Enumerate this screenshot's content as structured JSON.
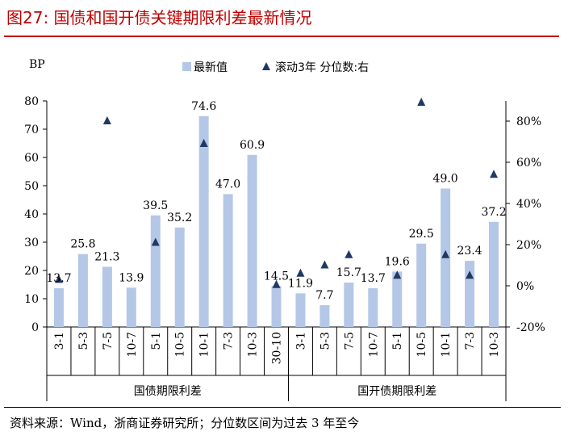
{
  "title": "图27:   国债和国开债关键期限利差最新情况",
  "source": "资料来源：Wind，浙商证券研究所；分位数区间为过去 3 年至今",
  "chart_data": {
    "type": "bar",
    "ylabel": "BP",
    "ylim": [
      0,
      80
    ],
    "yticks": [
      0,
      10,
      20,
      30,
      40,
      50,
      60,
      70,
      80
    ],
    "y2lim": [
      -20,
      90
    ],
    "y2ticks": [
      "-20%",
      "0%",
      "20%",
      "40%",
      "60%",
      "80%"
    ],
    "y2tick_values": [
      -20,
      0,
      20,
      40,
      60,
      80
    ],
    "legend_position": "top",
    "groups": [
      {
        "label": "国债期限利差",
        "categories": [
          "3-1",
          "5-3",
          "7-5",
          "10-7",
          "5-1",
          "10-5",
          "10-1",
          "7-3",
          "10-3",
          "30-10"
        ]
      },
      {
        "label": "国开债期限利差",
        "categories": [
          "3-1",
          "5-3",
          "7-5",
          "10-7",
          "5-1",
          "10-5",
          "10-1",
          "7-3",
          "10-3"
        ]
      }
    ],
    "series": [
      {
        "name": "最新值",
        "type": "bar",
        "axis": "left",
        "color": "#b4c7e7",
        "values": [
          13.7,
          25.8,
          21.3,
          13.9,
          39.5,
          35.2,
          74.6,
          47.0,
          60.9,
          14.5,
          11.9,
          7.7,
          15.7,
          13.7,
          19.6,
          29.5,
          49.0,
          23.4,
          37.2
        ],
        "labels": [
          "13.7",
          "25.8",
          "21.3",
          "13.9",
          "39.5",
          "35.2",
          "74.6",
          "47.0",
          "60.9",
          "14.5",
          "11.9",
          "7.7",
          "15.7",
          "13.7",
          "19.6",
          "29.5",
          "49.0",
          "23.4",
          "37.2"
        ]
      },
      {
        "name": "滚动3年 分位数:右",
        "type": "scatter",
        "axis": "right",
        "color": "#1f3864",
        "marker": "triangle",
        "values": [
          3,
          null,
          80,
          null,
          21,
          null,
          69,
          null,
          null,
          0.5,
          6,
          10,
          15,
          null,
          5,
          89,
          15,
          5,
          54
        ]
      }
    ]
  }
}
